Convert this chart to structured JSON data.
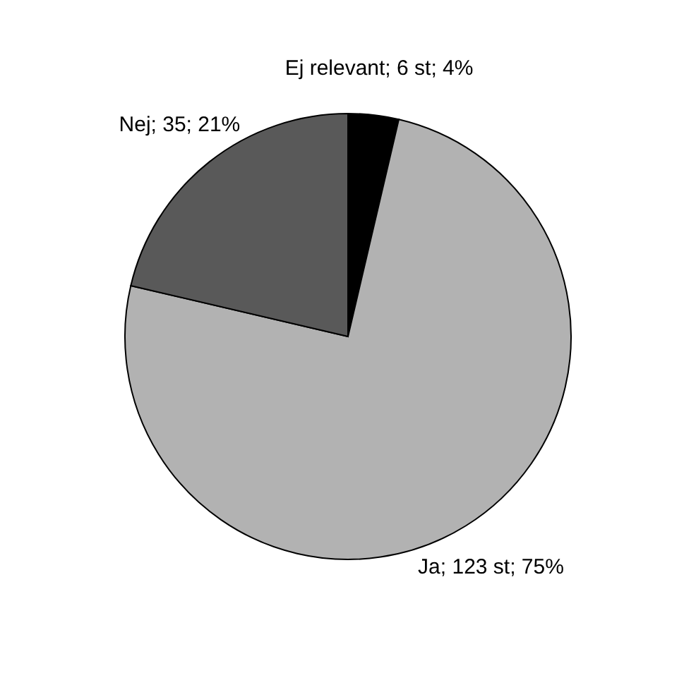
{
  "chart_data": {
    "type": "pie",
    "categories": [
      "Ej relevant",
      "Ja",
      "Nej"
    ],
    "values": [
      6,
      123,
      35
    ],
    "colors": [
      "#000000",
      "#b2b2b2",
      "#595959"
    ],
    "value_labels": [
      "6 st; 4%",
      "123 st; 75%",
      "35; 21%"
    ],
    "legend": false
  }
}
